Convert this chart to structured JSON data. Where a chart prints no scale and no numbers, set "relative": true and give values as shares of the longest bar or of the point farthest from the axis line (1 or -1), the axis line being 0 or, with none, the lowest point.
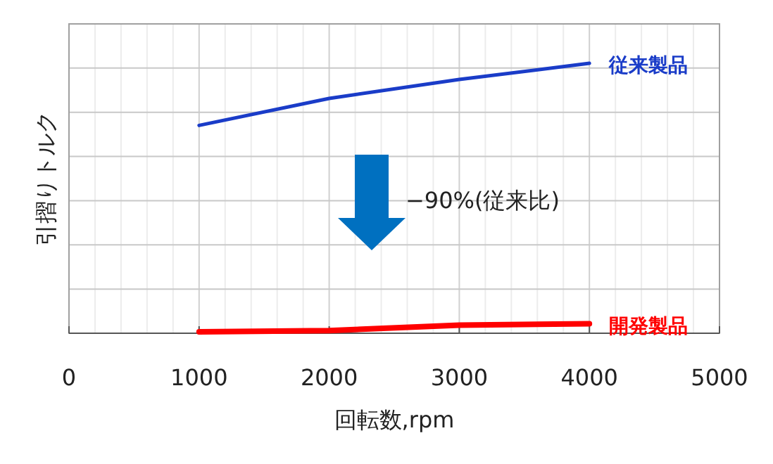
{
  "chart_data": {
    "type": "line",
    "relative": true,
    "xlabel": "回転数,rpm",
    "ylabel": "引摺りトルク",
    "x": [
      1000,
      2000,
      3000,
      4000
    ],
    "series": [
      {
        "name": "従来製品",
        "color": "#1a3cc8",
        "values": [
          0.77,
          0.87,
          0.94,
          1.0
        ]
      },
      {
        "name": "開発製品",
        "color": "#ff0000",
        "values": [
          0.005,
          0.01,
          0.03,
          0.035
        ]
      }
    ],
    "xlim": [
      0,
      5000
    ],
    "xticks": [
      0,
      1000,
      2000,
      3000,
      4000,
      5000
    ],
    "tick_labels": "x",
    "grid": true,
    "legend": false,
    "annotations": [
      "−90%(従来比)"
    ]
  }
}
